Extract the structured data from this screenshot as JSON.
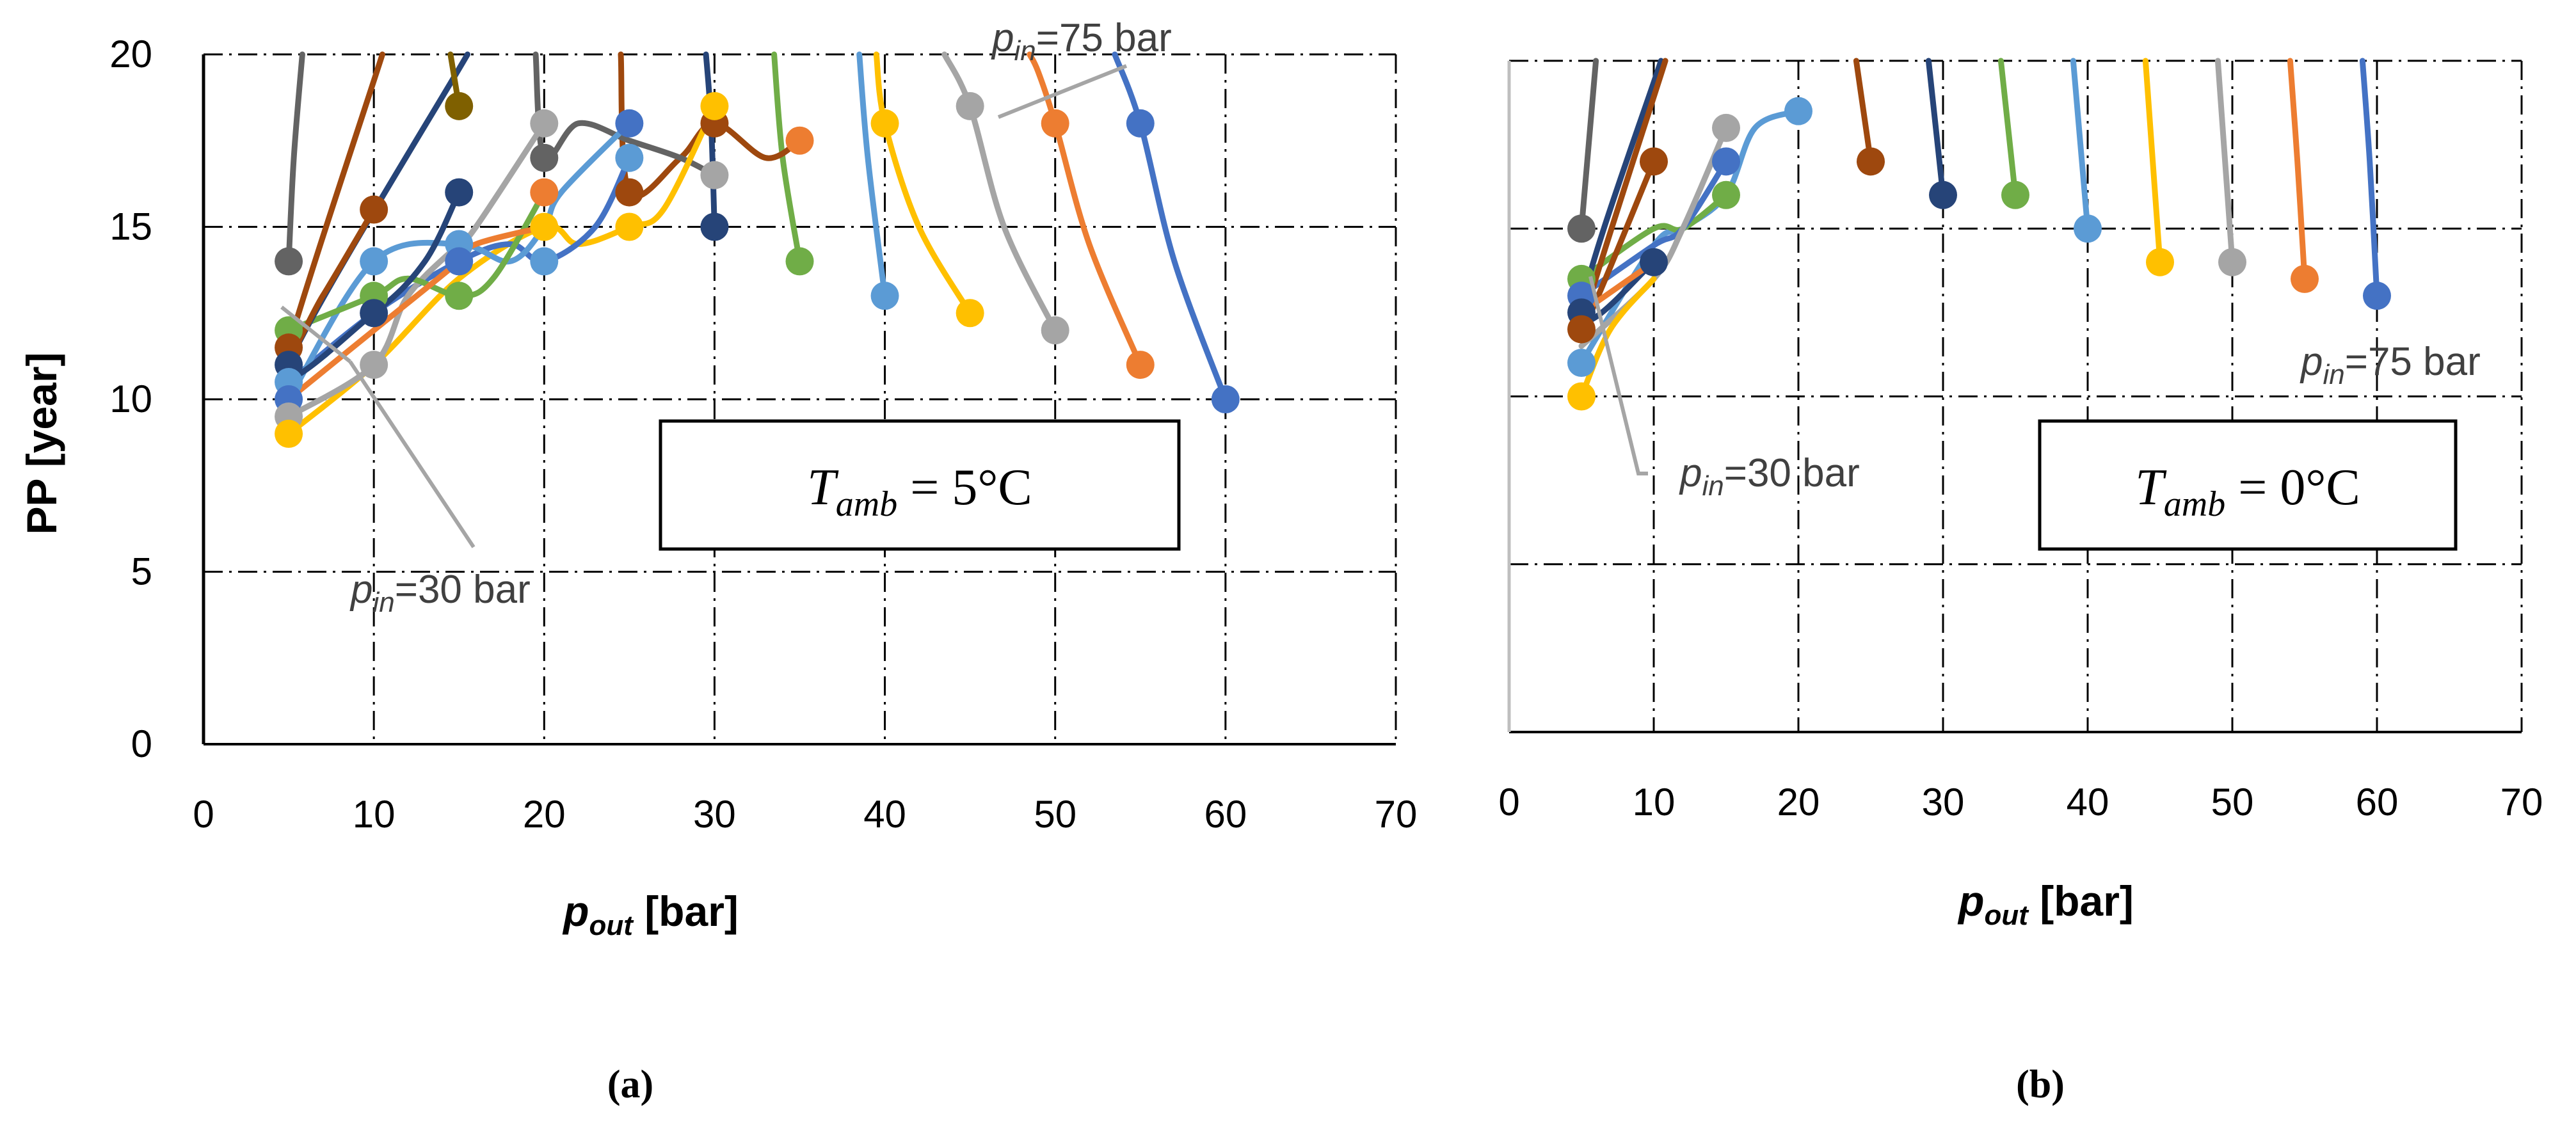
{
  "chart_data": [
    {
      "panel": "a",
      "type": "line",
      "caption": "(a)",
      "xlabel": "pout [bar]",
      "xlabel_main": "p",
      "xlabel_sub": "out",
      "xlabel_unit": " [bar]",
      "ylabel": "PP [year]",
      "xlim": [
        0,
        70
      ],
      "ylim": [
        0,
        20
      ],
      "xticks": [
        0,
        10,
        20,
        30,
        40,
        50,
        60,
        70
      ],
      "yticks": [
        0,
        5,
        10,
        15,
        20
      ],
      "show_y_axis_labels": true,
      "condition": {
        "lhs_main": "T",
        "lhs_sub": "amb",
        "rhs": " = 5°C"
      },
      "annotations": [
        {
          "main": "p",
          "sub": "in",
          "text": "=75 bar"
        },
        {
          "main": "p",
          "sub": "in",
          "text": "=30 bar"
        }
      ],
      "series": [
        {
          "name": "s1",
          "color": "#4472C4",
          "x": [
            60,
            57,
            55,
            53.5
          ],
          "y": [
            10,
            14,
            18,
            20
          ]
        },
        {
          "name": "s2",
          "color": "#ED7D31",
          "x": [
            55,
            52,
            50,
            49,
            48.5
          ],
          "y": [
            11,
            14.5,
            18,
            19.5,
            20
          ]
        },
        {
          "name": "s3",
          "color": "#A5A5A5",
          "x": [
            50,
            47,
            45,
            43.5
          ],
          "y": [
            12,
            15,
            18.5,
            20
          ]
        },
        {
          "name": "s4",
          "color": "#FFC000",
          "x": [
            45,
            42,
            40,
            39.5
          ],
          "y": [
            12.5,
            15,
            18,
            20
          ]
        },
        {
          "name": "s5",
          "color": "#5B9BD5",
          "x": [
            40,
            39,
            38.5
          ],
          "y": [
            13,
            17,
            20
          ]
        },
        {
          "name": "s6",
          "color": "#70AD47",
          "x": [
            35,
            34,
            33.5
          ],
          "y": [
            14,
            17,
            20
          ]
        },
        {
          "name": "s7",
          "color": "#264478",
          "x": [
            30,
            29.8,
            29.5
          ],
          "y": [
            15,
            18,
            20
          ]
        },
        {
          "name": "s8",
          "color": "#9E480E",
          "x": [
            35,
            33,
            30,
            28,
            25,
            24.5
          ],
          "y": [
            17.5,
            17,
            18,
            17,
            16,
            20
          ]
        },
        {
          "name": "s9",
          "color": "#636363",
          "x": [
            30,
            28,
            25,
            22,
            20,
            19.5
          ],
          "y": [
            16.5,
            17,
            17.5,
            18,
            17,
            20
          ]
        },
        {
          "name": "s10",
          "color": "#FFC000",
          "x": [
            30,
            27,
            25,
            22,
            20,
            15,
            10,
            5
          ],
          "y": [
            18.5,
            15.5,
            15,
            14.5,
            15,
            13.5,
            11,
            9
          ]
        },
        {
          "name": "s11",
          "color": "#4472C4",
          "x": [
            25,
            23,
            20,
            18,
            15,
            10,
            5
          ],
          "y": [
            17,
            15,
            14,
            14.5,
            14,
            12.5,
            10.5
          ]
        },
        {
          "name": "s12",
          "color": "#A5A5A5",
          "x": [
            20,
            16,
            15,
            12,
            10,
            5
          ],
          "y": [
            18,
            15,
            14.5,
            13,
            11,
            9.5
          ]
        },
        {
          "name": "s13",
          "color": "#5B9BD5",
          "x": [
            25,
            21,
            20,
            18,
            15,
            10,
            5
          ],
          "y": [
            18,
            16,
            15,
            14,
            14.5,
            14,
            10
          ]
        },
        {
          "name": "s14",
          "color": "#70AD47",
          "x": [
            20,
            17,
            15,
            12,
            10,
            5
          ],
          "y": [
            16,
            13.5,
            13,
            13.5,
            13,
            12
          ]
        },
        {
          "name": "s15",
          "color": "#ED7D31",
          "x": [
            20,
            16,
            15,
            10,
            5
          ],
          "y": [
            15,
            14.5,
            14,
            12,
            10
          ]
        },
        {
          "name": "s16",
          "color": "#264478",
          "x": [
            15,
            13,
            10,
            5,
            15.5
          ],
          "y": [
            16,
            14,
            12.5,
            11,
            20
          ]
        },
        {
          "name": "s17",
          "color": "#9E480E",
          "x": [
            10,
            7,
            5,
            10.5
          ],
          "y": [
            15.5,
            13,
            11.5,
            20
          ]
        },
        {
          "name": "s18",
          "color": "#7F6000",
          "x": [
            15,
            14.5
          ],
          "y": [
            18.5,
            20
          ]
        },
        {
          "name": "s19",
          "color": "#636363",
          "x": [
            5,
            5.3,
            5.8
          ],
          "y": [
            14,
            17,
            20
          ]
        }
      ],
      "markers": [
        {
          "color": "#4472C4",
          "x": 60,
          "y": 10
        },
        {
          "color": "#4472C4",
          "x": 55,
          "y": 18
        },
        {
          "color": "#ED7D31",
          "x": 55,
          "y": 11
        },
        {
          "color": "#ED7D31",
          "x": 50,
          "y": 18
        },
        {
          "color": "#A5A5A5",
          "x": 50,
          "y": 12
        },
        {
          "color": "#A5A5A5",
          "x": 45,
          "y": 18.5
        },
        {
          "color": "#FFC000",
          "x": 45,
          "y": 12.5
        },
        {
          "color": "#FFC000",
          "x": 40,
          "y": 18
        },
        {
          "color": "#5B9BD5",
          "x": 40,
          "y": 13
        },
        {
          "color": "#70AD47",
          "x": 35,
          "y": 14
        },
        {
          "color": "#ED7D31",
          "x": 35,
          "y": 17.5
        },
        {
          "color": "#264478",
          "x": 30,
          "y": 15
        },
        {
          "color": "#9E480E",
          "x": 30,
          "y": 18
        },
        {
          "color": "#FFC000",
          "x": 30,
          "y": 18.5
        },
        {
          "color": "#A5A5A5",
          "x": 30,
          "y": 16.5
        },
        {
          "color": "#4472C4",
          "x": 25,
          "y": 18
        },
        {
          "color": "#5B9BD5",
          "x": 25,
          "y": 17
        },
        {
          "color": "#9E480E",
          "x": 25,
          "y": 16
        },
        {
          "color": "#FFC000",
          "x": 25,
          "y": 15
        },
        {
          "color": "#A5A5A5",
          "x": 20,
          "y": 18
        },
        {
          "color": "#636363",
          "x": 20,
          "y": 17
        },
        {
          "color": "#ED7D31",
          "x": 20,
          "y": 16
        },
        {
          "color": "#FFC000",
          "x": 20,
          "y": 15
        },
        {
          "color": "#5B9BD5",
          "x": 20,
          "y": 14
        },
        {
          "color": "#7F6000",
          "x": 15,
          "y": 18.5
        },
        {
          "color": "#264478",
          "x": 15,
          "y": 16
        },
        {
          "color": "#5B9BD5",
          "x": 15,
          "y": 14.5
        },
        {
          "color": "#4472C4",
          "x": 15,
          "y": 14
        },
        {
          "color": "#70AD47",
          "x": 15,
          "y": 13
        },
        {
          "color": "#9E480E",
          "x": 10,
          "y": 15.5
        },
        {
          "color": "#5B9BD5",
          "x": 10,
          "y": 14
        },
        {
          "color": "#70AD47",
          "x": 10,
          "y": 13
        },
        {
          "color": "#264478",
          "x": 10,
          "y": 12.5
        },
        {
          "color": "#A5A5A5",
          "x": 10,
          "y": 11
        },
        {
          "color": "#636363",
          "x": 5,
          "y": 14
        },
        {
          "color": "#70AD47",
          "x": 5,
          "y": 12
        },
        {
          "color": "#9E480E",
          "x": 5,
          "y": 11.5
        },
        {
          "color": "#264478",
          "x": 5,
          "y": 11
        },
        {
          "color": "#5B9BD5",
          "x": 5,
          "y": 10.5
        },
        {
          "color": "#4472C4",
          "x": 5,
          "y": 10
        },
        {
          "color": "#A5A5A5",
          "x": 5,
          "y": 9.5
        },
        {
          "color": "#FFC000",
          "x": 5,
          "y": 9
        }
      ]
    },
    {
      "panel": "b",
      "type": "line",
      "caption": "(b)",
      "xlabel": "pout [bar]",
      "xlabel_main": "p",
      "xlabel_sub": "out",
      "xlabel_unit": " [bar]",
      "ylabel": "",
      "xlim": [
        0,
        70
      ],
      "ylim": [
        0,
        20
      ],
      "xticks": [
        0,
        10,
        20,
        30,
        40,
        50,
        60,
        70
      ],
      "yticks": [
        0,
        5,
        10,
        15,
        20
      ],
      "show_y_axis_labels": false,
      "condition": {
        "lhs_main": "T",
        "lhs_sub": "amb",
        "rhs": " = 0°C"
      },
      "annotations": [
        {
          "main": "p",
          "sub": "in",
          "text": "=75 bar"
        },
        {
          "main": "p",
          "sub": "in",
          "text": "=30 bar"
        }
      ],
      "series": [
        {
          "name": "s1",
          "color": "#4472C4",
          "x": [
            60,
            59.5,
            59
          ],
          "y": [
            13,
            17,
            20
          ]
        },
        {
          "name": "s2",
          "color": "#ED7D31",
          "x": [
            55,
            54.5,
            54
          ],
          "y": [
            13.5,
            17,
            20
          ]
        },
        {
          "name": "s3",
          "color": "#A5A5A5",
          "x": [
            50,
            49.5,
            49
          ],
          "y": [
            14,
            17,
            20
          ]
        },
        {
          "name": "s4",
          "color": "#FFC000",
          "x": [
            45,
            44.5,
            44
          ],
          "y": [
            14,
            17,
            20
          ]
        },
        {
          "name": "s5",
          "color": "#5B9BD5",
          "x": [
            40,
            39.5,
            39
          ],
          "y": [
            15,
            17.5,
            20
          ]
        },
        {
          "name": "s6",
          "color": "#70AD47",
          "x": [
            35,
            34.5,
            34
          ],
          "y": [
            16,
            18,
            20
          ]
        },
        {
          "name": "s7",
          "color": "#264478",
          "x": [
            30,
            29.5,
            29
          ],
          "y": [
            16,
            18,
            20
          ]
        },
        {
          "name": "s8",
          "color": "#9E480E",
          "x": [
            25,
            24.5,
            24
          ],
          "y": [
            17,
            18.5,
            20
          ]
        },
        {
          "name": "s9",
          "color": "#5B9BD5",
          "x": [
            20,
            17,
            15,
            12,
            10,
            5
          ],
          "y": [
            18.5,
            18,
            16,
            15,
            14.5,
            11
          ]
        },
        {
          "name": "s10",
          "color": "#70AD47",
          "x": [
            15,
            12,
            10,
            5
          ],
          "y": [
            16,
            15,
            15,
            13.5
          ]
        },
        {
          "name": "s11",
          "color": "#4472C4",
          "x": [
            15,
            12,
            10,
            5
          ],
          "y": [
            17,
            15,
            14.5,
            13
          ]
        },
        {
          "name": "s12",
          "color": "#A5A5A5",
          "x": [
            15,
            12,
            10,
            5
          ],
          "y": [
            18,
            15,
            13.5,
            11.5
          ]
        },
        {
          "name": "s13",
          "color": "#264478",
          "x": [
            10,
            5,
            10.5
          ],
          "y": [
            14,
            12.5,
            20
          ]
        },
        {
          "name": "s14",
          "color": "#9E480E",
          "x": [
            10,
            5,
            10.8
          ],
          "y": [
            17,
            12,
            20
          ]
        },
        {
          "name": "s15",
          "color": "#FFC000",
          "x": [
            10,
            7,
            5
          ],
          "y": [
            13.5,
            12,
            10
          ]
        },
        {
          "name": "s16",
          "color": "#636363",
          "x": [
            5,
            5.5,
            6
          ],
          "y": [
            15,
            17.5,
            20
          ]
        },
        {
          "name": "s17",
          "color": "#ED7D31",
          "x": [
            10,
            5
          ],
          "y": [
            14,
            12.5
          ]
        }
      ],
      "markers": [
        {
          "color": "#4472C4",
          "x": 60,
          "y": 13
        },
        {
          "color": "#ED7D31",
          "x": 55,
          "y": 13.5
        },
        {
          "color": "#A5A5A5",
          "x": 50,
          "y": 14
        },
        {
          "color": "#FFC000",
          "x": 45,
          "y": 14
        },
        {
          "color": "#5B9BD5",
          "x": 40,
          "y": 15
        },
        {
          "color": "#70AD47",
          "x": 35,
          "y": 16
        },
        {
          "color": "#264478",
          "x": 30,
          "y": 16
        },
        {
          "color": "#9E480E",
          "x": 25,
          "y": 17
        },
        {
          "color": "#5B9BD5",
          "x": 20,
          "y": 18.5
        },
        {
          "color": "#A5A5A5",
          "x": 15,
          "y": 18
        },
        {
          "color": "#4472C4",
          "x": 15,
          "y": 17
        },
        {
          "color": "#70AD47",
          "x": 15,
          "y": 16
        },
        {
          "color": "#9E480E",
          "x": 10,
          "y": 17
        },
        {
          "color": "#264478",
          "x": 10,
          "y": 14
        },
        {
          "color": "#636363",
          "x": 5,
          "y": 15
        },
        {
          "color": "#70AD47",
          "x": 5,
          "y": 13.5
        },
        {
          "color": "#4472C4",
          "x": 5,
          "y": 13
        },
        {
          "color": "#264478",
          "x": 5,
          "y": 12.5
        },
        {
          "color": "#9E480E",
          "x": 5,
          "y": 12
        },
        {
          "color": "#5B9BD5",
          "x": 5,
          "y": 11
        },
        {
          "color": "#FFC000",
          "x": 5,
          "y": 10
        }
      ]
    }
  ]
}
